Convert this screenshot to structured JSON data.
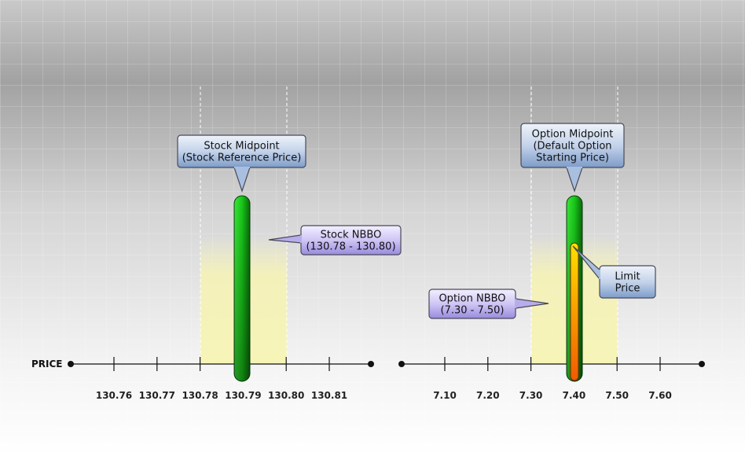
{
  "axis_label": "PRICE",
  "stock_axis": {
    "ticks": [
      "130.76",
      "130.77",
      "130.78",
      "130.79",
      "130.80",
      "130.81"
    ]
  },
  "option_axis": {
    "ticks": [
      "7.10",
      "7.20",
      "7.30",
      "7.40",
      "7.50",
      "7.60"
    ]
  },
  "callouts": [
    {
      "lines": [
        "Stock Midpoint",
        "(Stock Reference Price)"
      ]
    },
    {
      "lines": [
        "Stock NBBO",
        "(130.78 - 130.80)"
      ]
    },
    {
      "lines": [
        "Option Midpoint",
        "(Default Option",
        "Starting Price)"
      ]
    },
    {
      "lines": [
        "Limit",
        "Price"
      ]
    },
    {
      "lines": [
        "Option NBBO",
        "(7.30 - 7.50)"
      ]
    }
  ]
}
